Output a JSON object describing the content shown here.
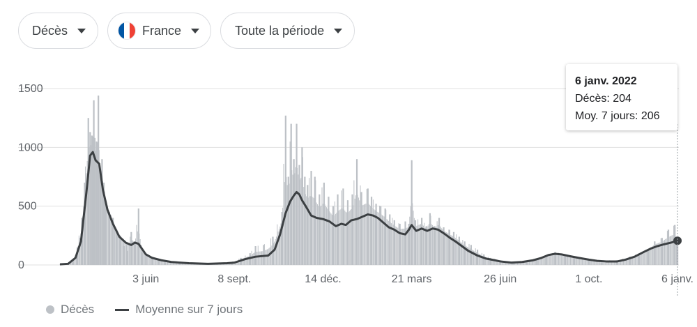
{
  "filters": {
    "metric": "Décès",
    "country": "France",
    "period": "Toute la période"
  },
  "flag_colors": [
    "#0055a4",
    "#ffffff",
    "#ef4135"
  ],
  "colors": {
    "bars": "#bdc1c6",
    "line": "#3c4043",
    "grid": "#e0e0e0",
    "axis_text": "#5f6368",
    "cursor": "#9aa0a6"
  },
  "tooltip": {
    "date": "6 janv. 2022",
    "deaths": "Décès: 204",
    "avg": "Moy. 7 jours: 206"
  },
  "legend": {
    "bars_label": "Décès",
    "line_label": "Moyenne sur 7 jours"
  },
  "chart_data": {
    "type": "bar",
    "x_start": "2020-03-01",
    "x_end": "2022-01-06",
    "ylim": [
      0,
      1500
    ],
    "yticks": [
      0,
      500,
      1000,
      1500
    ],
    "ytick_labels": [
      "0",
      "500",
      "1000",
      "1500"
    ],
    "xticks": [
      {
        "date": "2020-06-03",
        "label": "3 juin"
      },
      {
        "date": "2020-09-08",
        "label": "8 sept."
      },
      {
        "date": "2020-12-14",
        "label": "14 déc."
      },
      {
        "date": "2021-03-21",
        "label": "21 mars"
      },
      {
        "date": "2021-06-26",
        "label": "26 juin"
      },
      {
        "date": "2021-10-01",
        "label": "1 oct."
      },
      {
        "date": "2022-01-06",
        "label": "6 janv."
      }
    ],
    "grid": true,
    "legend_position": "bottom-left",
    "series": [
      {
        "name": "Décès",
        "kind": "bar",
        "points": [
          [
            "2020-03-01",
            0
          ],
          [
            "2020-03-10",
            10
          ],
          [
            "2020-03-15",
            40
          ],
          [
            "2020-03-20",
            150
          ],
          [
            "2020-03-25",
            400
          ],
          [
            "2020-03-28",
            700
          ],
          [
            "2020-04-01",
            1250
          ],
          [
            "2020-04-03",
            1130
          ],
          [
            "2020-04-05",
            1100
          ],
          [
            "2020-04-07",
            1400
          ],
          [
            "2020-04-08",
            1080
          ],
          [
            "2020-04-10",
            1050
          ],
          [
            "2020-04-12",
            1440
          ],
          [
            "2020-04-14",
            800
          ],
          [
            "2020-04-16",
            900
          ],
          [
            "2020-04-18",
            700
          ],
          [
            "2020-04-20",
            550
          ],
          [
            "2020-04-24",
            450
          ],
          [
            "2020-04-28",
            400
          ],
          [
            "2020-05-02",
            300
          ],
          [
            "2020-05-06",
            250
          ],
          [
            "2020-05-10",
            160
          ],
          [
            "2020-05-14",
            120
          ],
          [
            "2020-05-18",
            280
          ],
          [
            "2020-05-22",
            200
          ],
          [
            "2020-05-26",
            480
          ],
          [
            "2020-05-30",
            110
          ],
          [
            "2020-06-03",
            100
          ],
          [
            "2020-06-10",
            70
          ],
          [
            "2020-06-17",
            40
          ],
          [
            "2020-06-24",
            30
          ],
          [
            "2020-07-10",
            20
          ],
          [
            "2020-08-01",
            10
          ],
          [
            "2020-08-20",
            15
          ],
          [
            "2020-09-05",
            25
          ],
          [
            "2020-09-15",
            60
          ],
          [
            "2020-09-25",
            100
          ],
          [
            "2020-10-01",
            160
          ],
          [
            "2020-10-10",
            170
          ],
          [
            "2020-10-20",
            240
          ],
          [
            "2020-10-30",
            450
          ],
          [
            "2020-11-03",
            1270
          ],
          [
            "2020-11-06",
            750
          ],
          [
            "2020-11-09",
            1200
          ],
          [
            "2020-11-12",
            900
          ],
          [
            "2020-11-15",
            1200
          ],
          [
            "2020-11-18",
            850
          ],
          [
            "2020-11-21",
            1000
          ],
          [
            "2020-11-24",
            750
          ],
          [
            "2020-11-27",
            680
          ],
          [
            "2020-12-01",
            800
          ],
          [
            "2020-12-05",
            750
          ],
          [
            "2020-12-10",
            600
          ],
          [
            "2020-12-15",
            700
          ],
          [
            "2020-12-20",
            580
          ],
          [
            "2020-12-25",
            500
          ],
          [
            "2020-12-30",
            600
          ],
          [
            "2021-01-05",
            650
          ],
          [
            "2021-01-10",
            550
          ],
          [
            "2021-01-15",
            600
          ],
          [
            "2021-01-20",
            900
          ],
          [
            "2021-01-25",
            620
          ],
          [
            "2021-02-01",
            650
          ],
          [
            "2021-02-05",
            580
          ],
          [
            "2021-02-10",
            520
          ],
          [
            "2021-02-15",
            500
          ],
          [
            "2021-02-20",
            480
          ],
          [
            "2021-02-25",
            430
          ],
          [
            "2021-03-02",
            380
          ],
          [
            "2021-03-08",
            350
          ],
          [
            "2021-03-14",
            370
          ],
          [
            "2021-03-18",
            350
          ],
          [
            "2021-03-21",
            890
          ],
          [
            "2021-03-25",
            380
          ],
          [
            "2021-04-01",
            400
          ],
          [
            "2021-04-06",
            330
          ],
          [
            "2021-04-10",
            440
          ],
          [
            "2021-04-15",
            330
          ],
          [
            "2021-04-20",
            400
          ],
          [
            "2021-04-25",
            320
          ],
          [
            "2021-05-01",
            300
          ],
          [
            "2021-05-06",
            280
          ],
          [
            "2021-05-12",
            240
          ],
          [
            "2021-05-18",
            200
          ],
          [
            "2021-05-25",
            170
          ],
          [
            "2021-06-01",
            130
          ],
          [
            "2021-06-08",
            90
          ],
          [
            "2021-06-15",
            60
          ],
          [
            "2021-06-26",
            40
          ],
          [
            "2021-07-10",
            25
          ],
          [
            "2021-07-25",
            30
          ],
          [
            "2021-08-05",
            50
          ],
          [
            "2021-08-15",
            80
          ],
          [
            "2021-08-25",
            110
          ],
          [
            "2021-09-05",
            90
          ],
          [
            "2021-09-15",
            70
          ],
          [
            "2021-10-01",
            50
          ],
          [
            "2021-10-15",
            40
          ],
          [
            "2021-11-01",
            40
          ],
          [
            "2021-11-15",
            70
          ],
          [
            "2021-11-25",
            100
          ],
          [
            "2021-12-05",
            130
          ],
          [
            "2021-12-12",
            200
          ],
          [
            "2021-12-20",
            230
          ],
          [
            "2021-12-27",
            300
          ],
          [
            "2022-01-03",
            340
          ],
          [
            "2022-01-06",
            204
          ]
        ]
      },
      {
        "name": "Moyenne sur 7 jours",
        "kind": "line",
        "points": [
          [
            "2020-03-01",
            5
          ],
          [
            "2020-03-10",
            10
          ],
          [
            "2020-03-18",
            60
          ],
          [
            "2020-03-24",
            200
          ],
          [
            "2020-03-30",
            620
          ],
          [
            "2020-04-03",
            930
          ],
          [
            "2020-04-06",
            960
          ],
          [
            "2020-04-09",
            890
          ],
          [
            "2020-04-13",
            860
          ],
          [
            "2020-04-17",
            640
          ],
          [
            "2020-04-22",
            470
          ],
          [
            "2020-04-28",
            350
          ],
          [
            "2020-05-05",
            240
          ],
          [
            "2020-05-12",
            190
          ],
          [
            "2020-05-18",
            170
          ],
          [
            "2020-05-22",
            190
          ],
          [
            "2020-05-26",
            180
          ],
          [
            "2020-06-03",
            90
          ],
          [
            "2020-06-10",
            60
          ],
          [
            "2020-06-20",
            40
          ],
          [
            "2020-07-01",
            25
          ],
          [
            "2020-07-20",
            15
          ],
          [
            "2020-08-10",
            10
          ],
          [
            "2020-08-31",
            15
          ],
          [
            "2020-09-08",
            20
          ],
          [
            "2020-09-20",
            50
          ],
          [
            "2020-10-01",
            70
          ],
          [
            "2020-10-15",
            80
          ],
          [
            "2020-10-22",
            130
          ],
          [
            "2020-10-28",
            260
          ],
          [
            "2020-11-03",
            440
          ],
          [
            "2020-11-08",
            540
          ],
          [
            "2020-11-12",
            590
          ],
          [
            "2020-11-15",
            620
          ],
          [
            "2020-11-18",
            600
          ],
          [
            "2020-11-21",
            550
          ],
          [
            "2020-11-25",
            500
          ],
          [
            "2020-12-01",
            420
          ],
          [
            "2020-12-07",
            400
          ],
          [
            "2020-12-14",
            390
          ],
          [
            "2020-12-21",
            370
          ],
          [
            "2020-12-28",
            330
          ],
          [
            "2021-01-03",
            350
          ],
          [
            "2021-01-08",
            340
          ],
          [
            "2021-01-14",
            380
          ],
          [
            "2021-01-20",
            390
          ],
          [
            "2021-01-26",
            410
          ],
          [
            "2021-02-01",
            430
          ],
          [
            "2021-02-07",
            420
          ],
          [
            "2021-02-12",
            400
          ],
          [
            "2021-02-18",
            360
          ],
          [
            "2021-02-24",
            320
          ],
          [
            "2021-03-02",
            300
          ],
          [
            "2021-03-08",
            270
          ],
          [
            "2021-03-14",
            260
          ],
          [
            "2021-03-18",
            300
          ],
          [
            "2021-03-21",
            340
          ],
          [
            "2021-03-26",
            290
          ],
          [
            "2021-04-01",
            310
          ],
          [
            "2021-04-07",
            290
          ],
          [
            "2021-04-13",
            310
          ],
          [
            "2021-04-19",
            300
          ],
          [
            "2021-04-25",
            270
          ],
          [
            "2021-05-02",
            230
          ],
          [
            "2021-05-08",
            200
          ],
          [
            "2021-05-15",
            160
          ],
          [
            "2021-05-22",
            120
          ],
          [
            "2021-06-01",
            80
          ],
          [
            "2021-06-10",
            55
          ],
          [
            "2021-06-20",
            40
          ],
          [
            "2021-06-26",
            30
          ],
          [
            "2021-07-08",
            20
          ],
          [
            "2021-07-20",
            25
          ],
          [
            "2021-08-01",
            40
          ],
          [
            "2021-08-10",
            60
          ],
          [
            "2021-08-18",
            85
          ],
          [
            "2021-08-25",
            95
          ],
          [
            "2021-09-01",
            90
          ],
          [
            "2021-09-10",
            75
          ],
          [
            "2021-09-20",
            60
          ],
          [
            "2021-10-01",
            45
          ],
          [
            "2021-10-10",
            35
          ],
          [
            "2021-10-20",
            30
          ],
          [
            "2021-11-01",
            30
          ],
          [
            "2021-11-10",
            45
          ],
          [
            "2021-11-20",
            70
          ],
          [
            "2021-11-30",
            110
          ],
          [
            "2021-12-08",
            140
          ],
          [
            "2021-12-15",
            160
          ],
          [
            "2021-12-22",
            175
          ],
          [
            "2021-12-30",
            190
          ],
          [
            "2022-01-06",
            206
          ]
        ]
      }
    ]
  }
}
